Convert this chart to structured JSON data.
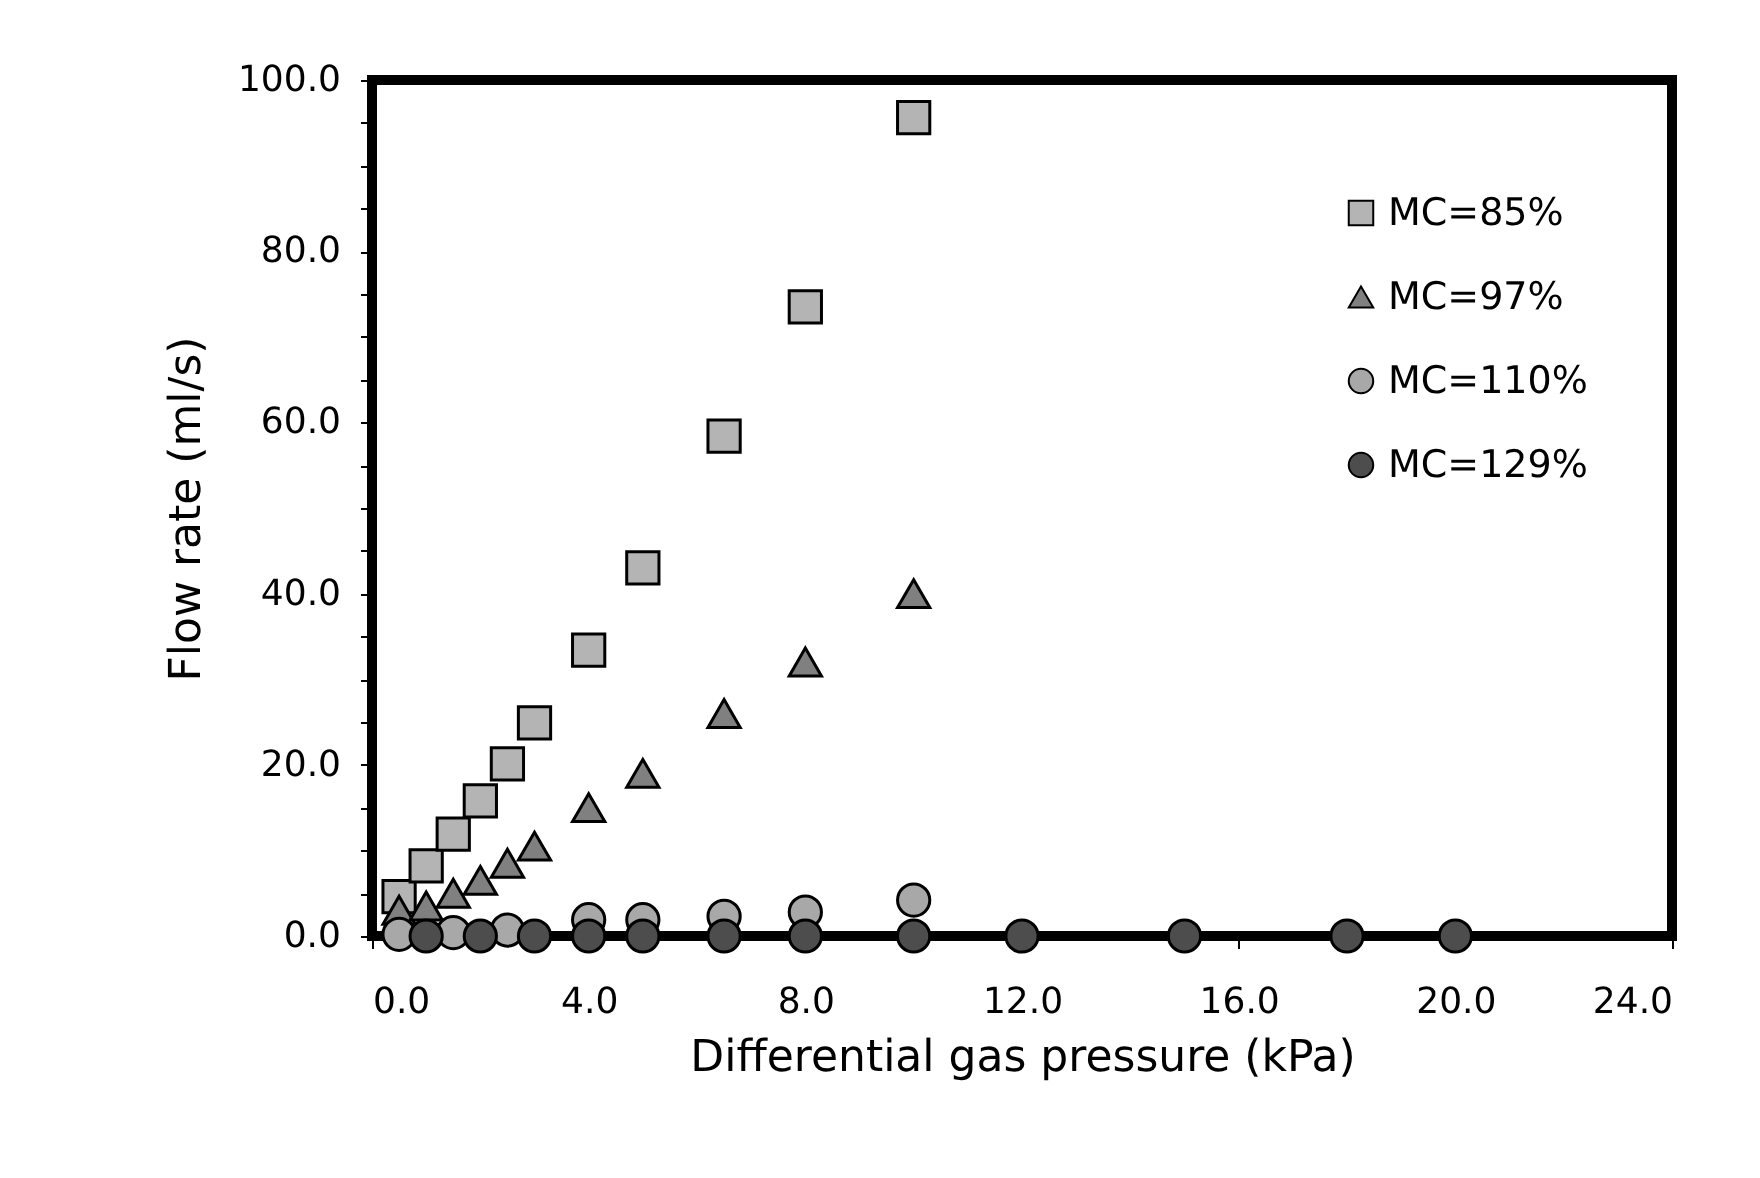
{
  "chart_data": {
    "type": "scatter",
    "xlabel": "Differential gas pressure (kPa)",
    "ylabel": "Flow rate (ml/s)",
    "xlim": [
      0,
      24
    ],
    "ylim": [
      0,
      100
    ],
    "xticks": [
      {
        "value": 0,
        "label": "0.0"
      },
      {
        "value": 4,
        "label": "4.0"
      },
      {
        "value": 8,
        "label": "8.0"
      },
      {
        "value": 12,
        "label": "12.0"
      },
      {
        "value": 16,
        "label": "16.0"
      },
      {
        "value": 20,
        "label": "20.0"
      },
      {
        "value": 24,
        "label": "24.0"
      }
    ],
    "yticks": [
      {
        "value": 0,
        "label": "0.0"
      },
      {
        "value": 5,
        "label": null
      },
      {
        "value": 10,
        "label": null
      },
      {
        "value": 15,
        "label": null
      },
      {
        "value": 20,
        "label": "20.0"
      },
      {
        "value": 25,
        "label": null
      },
      {
        "value": 30,
        "label": null
      },
      {
        "value": 35,
        "label": null
      },
      {
        "value": 40,
        "label": "40.0"
      },
      {
        "value": 45,
        "label": null
      },
      {
        "value": 50,
        "label": null
      },
      {
        "value": 55,
        "label": null
      },
      {
        "value": 60,
        "label": "60.0"
      },
      {
        "value": 65,
        "label": null
      },
      {
        "value": 70,
        "label": null
      },
      {
        "value": 75,
        "label": null
      },
      {
        "value": 80,
        "label": "80.0"
      },
      {
        "value": 85,
        "label": null
      },
      {
        "value": 90,
        "label": null
      },
      {
        "value": 95,
        "label": null
      },
      {
        "value": 100,
        "label": "100.0"
      }
    ],
    "grid": false,
    "legend": "right",
    "series": [
      {
        "name": "MC=85%",
        "color": "#b4b4b4",
        "marker": "square",
        "x": [
          0.5,
          1,
          1.5,
          2,
          2.5,
          3,
          4,
          5,
          6.5,
          8,
          10
        ],
        "values": [
          4.6,
          8.2,
          11.9,
          15.8,
          20.1,
          24.9,
          33.4,
          43.0,
          58.4,
          73.5,
          95.6
        ]
      },
      {
        "name": "MC=97%",
        "color": "#808080",
        "marker": "triangle",
        "x": [
          0.5,
          1,
          1.5,
          2,
          2.5,
          3,
          4,
          5,
          6.5,
          8,
          10
        ],
        "values": [
          3.0,
          3.5,
          5,
          6.5,
          8.5,
          10.5,
          15,
          19,
          26,
          32,
          40
        ]
      },
      {
        "name": "MC=110%",
        "color": "#a8a8a8",
        "marker": "circle",
        "x": [
          0.5,
          1,
          1.5,
          2,
          2.5,
          3,
          4,
          5,
          6.5,
          8,
          10
        ],
        "values": [
          0.2,
          null,
          0.4,
          null,
          0.7,
          null,
          1.9,
          1.9,
          2.3,
          2.8,
          4.2
        ]
      },
      {
        "name": "MC=129%",
        "color": "#4d4d4d",
        "marker": "circle",
        "x": [
          1,
          2,
          3,
          4,
          5,
          6.5,
          8,
          10,
          12,
          15,
          18,
          20
        ],
        "values": [
          0,
          0,
          0,
          0,
          0,
          0,
          0,
          0,
          0,
          0,
          0,
          0
        ]
      }
    ]
  }
}
